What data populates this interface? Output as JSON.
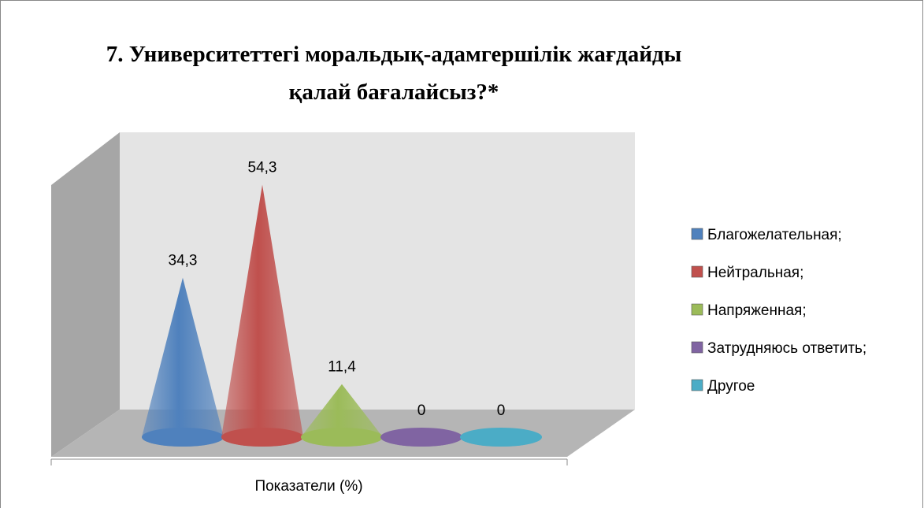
{
  "chart_data": {
    "type": "cone",
    "title": "7. Университеттегі моральдық-адамгершілік жағдайды қалай бағалайсыз?*",
    "categories": [
      "Показатели (%)"
    ],
    "series": [
      {
        "name": "Благожелательная;",
        "color": "#4f81bd",
        "values": [
          34.3
        ],
        "value_labels": [
          "34,3"
        ]
      },
      {
        "name": "Нейтральная;",
        "color": "#c0504d",
        "values": [
          54.3
        ],
        "value_labels": [
          "54,3"
        ]
      },
      {
        "name": "Напряженная;",
        "color": "#9bbb59",
        "values": [
          11.4
        ],
        "value_labels": [
          "11,4"
        ]
      },
      {
        "name": "Затрудняюсь ответить;",
        "color": "#8064a2",
        "values": [
          0
        ]
      },
      {
        "name": "Другое",
        "color": "#4bacc6",
        "values": [
          0
        ]
      }
    ],
    "legend": "right"
  }
}
